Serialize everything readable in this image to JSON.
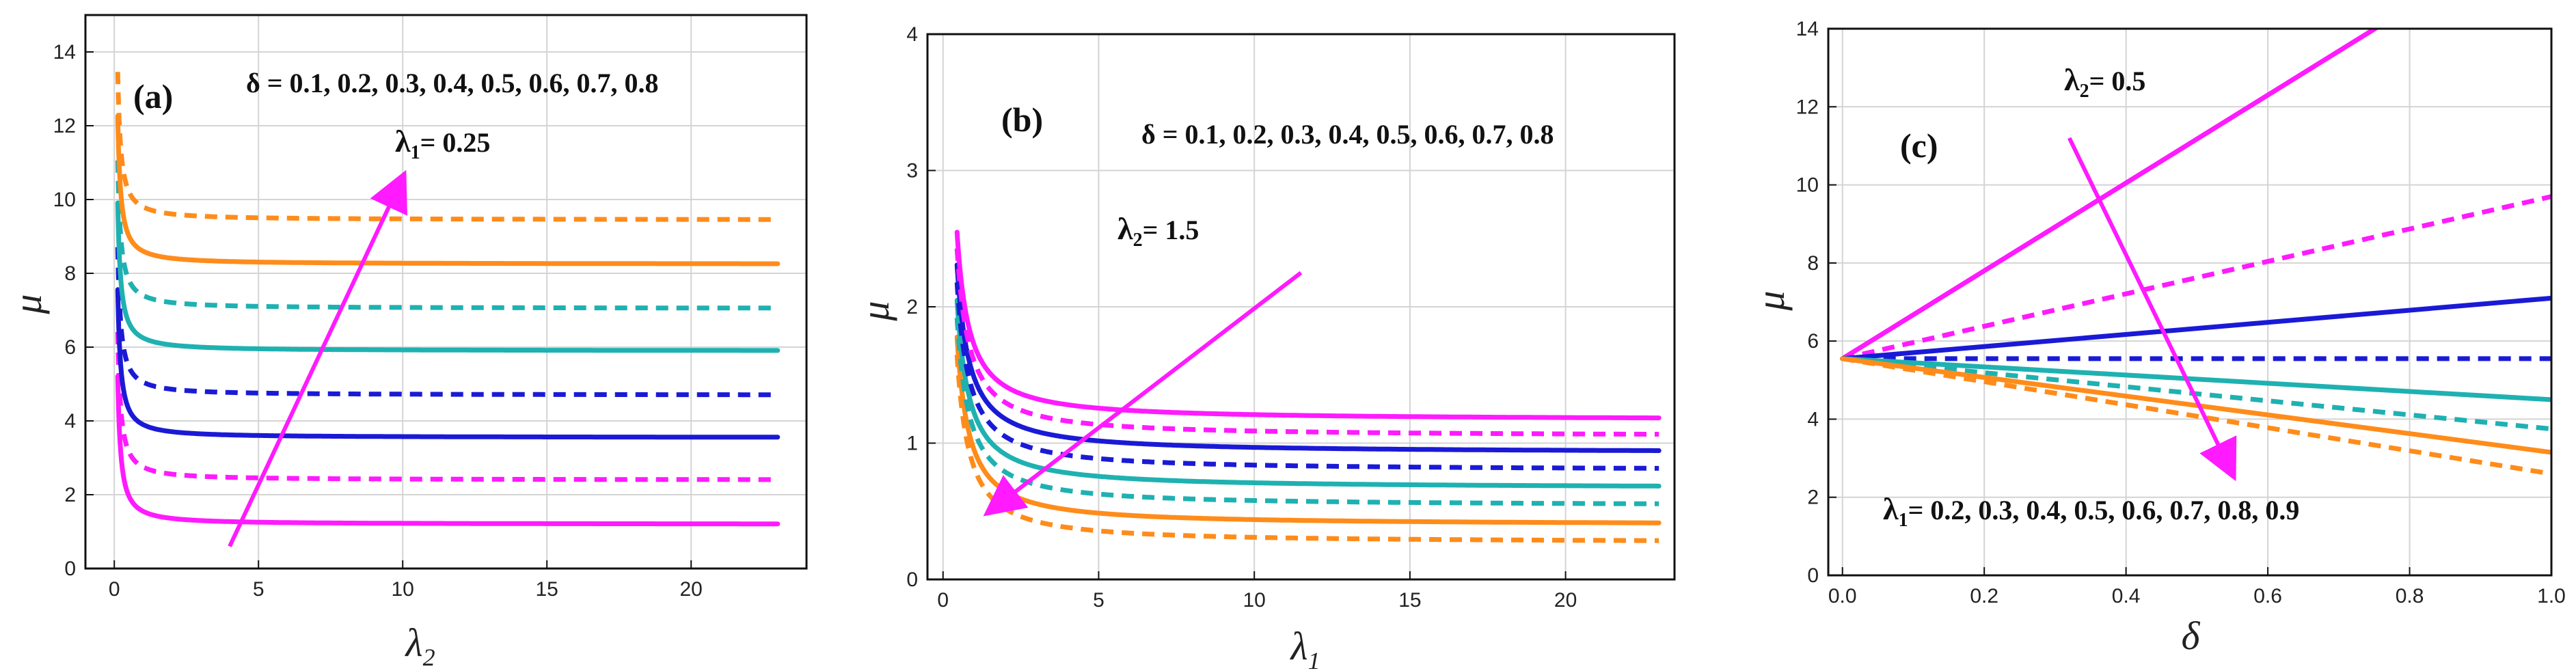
{
  "colors": {
    "orange": "#ff8c1a",
    "teal": "#1fb1b1",
    "blue": "#1a1ad6",
    "magenta": "#ff1aff",
    "grid": "#d4d4d4",
    "frame": "#111111"
  },
  "chart_data": [
    {
      "type": "line",
      "panel": "(a)",
      "xlabel_symbol": "λ",
      "xlabel_sub": "2",
      "ylabel": "μ",
      "xlim": [
        -1,
        24
      ],
      "ylim": [
        0,
        15
      ],
      "xticks": [
        0,
        5,
        10,
        15,
        20
      ],
      "yticks": [
        0,
        2,
        4,
        6,
        8,
        10,
        12,
        14
      ],
      "ann_delta": "δ = 0.1, 0.2, 0.3, 0.4, 0.5, 0.6, 0.7, 0.8",
      "ann_param_symbol": "λ",
      "ann_param_sub": "1",
      "ann_param_value": "= 0.25",
      "arrow": {
        "from": [
          4,
          0.6
        ],
        "to": [
          10,
          10.6
        ]
      },
      "curve": {
        "kind": "hyperbolic",
        "xmin": 0.12,
        "xmax": 23,
        "k": 0.35
      },
      "series": [
        {
          "name": "δ = 0.1",
          "color": "magenta",
          "dash": false,
          "limit": 1.2
        },
        {
          "name": "δ = 0.2",
          "color": "magenta",
          "dash": true,
          "limit": 2.4
        },
        {
          "name": "δ = 0.3",
          "color": "blue",
          "dash": false,
          "limit": 3.55
        },
        {
          "name": "δ = 0.4",
          "color": "blue",
          "dash": true,
          "limit": 4.7
        },
        {
          "name": "δ = 0.5",
          "color": "teal",
          "dash": false,
          "limit": 5.9
        },
        {
          "name": "δ = 0.6",
          "color": "teal",
          "dash": true,
          "limit": 7.05
        },
        {
          "name": "δ = 0.7",
          "color": "orange",
          "dash": false,
          "limit": 8.25
        },
        {
          "name": "δ = 0.8",
          "color": "orange",
          "dash": true,
          "limit": 9.45
        }
      ]
    },
    {
      "type": "line",
      "panel": "(b)",
      "xlabel_symbol": "λ",
      "xlabel_sub": "1",
      "ylabel": "μ",
      "xlim": [
        -0.5,
        23.5
      ],
      "ylim": [
        0,
        4
      ],
      "xticks": [
        0,
        5,
        10,
        15,
        20
      ],
      "yticks": [
        0,
        1,
        2,
        3,
        4
      ],
      "ann_delta": "δ = 0.1, 0.2, 0.3, 0.4, 0.5, 0.6, 0.7, 0.8",
      "ann_param_symbol": "λ",
      "ann_param_sub": "2",
      "ann_param_value": "= 1.5",
      "arrow": {
        "from": [
          11.5,
          2.25
        ],
        "to": [
          1.5,
          0.5
        ]
      },
      "curve": {
        "kind": "hyperbolic",
        "xmin": 0.45,
        "xmax": 23,
        "k": 0.55
      },
      "series": [
        {
          "name": "δ = 0.1",
          "color": "orange",
          "dash": true,
          "limit": 0.27
        },
        {
          "name": "δ = 0.2",
          "color": "orange",
          "dash": false,
          "limit": 0.4
        },
        {
          "name": "δ = 0.3",
          "color": "teal",
          "dash": true,
          "limit": 0.54
        },
        {
          "name": "δ = 0.4",
          "color": "teal",
          "dash": false,
          "limit": 0.67
        },
        {
          "name": "δ = 0.5",
          "color": "blue",
          "dash": true,
          "limit": 0.8
        },
        {
          "name": "δ = 0.6",
          "color": "blue",
          "dash": false,
          "limit": 0.93
        },
        {
          "name": "δ = 0.7",
          "color": "magenta",
          "dash": true,
          "limit": 1.05
        },
        {
          "name": "δ = 0.8",
          "color": "magenta",
          "dash": false,
          "limit": 1.17
        }
      ]
    },
    {
      "type": "line",
      "panel": "(c)",
      "xlabel_symbol": "δ",
      "xlabel_sub": "",
      "ylabel": "μ",
      "xlim": [
        -0.02,
        1.0
      ],
      "ylim": [
        0,
        14
      ],
      "xticks": [
        0.0,
        0.2,
        0.4,
        0.6,
        0.8,
        1.0
      ],
      "xtick_labels": [
        "0.0",
        "0.2",
        "0.4",
        "0.6",
        "0.8",
        "1.0"
      ],
      "yticks": [
        0,
        2,
        4,
        6,
        8,
        10,
        12,
        14
      ],
      "ann_lambda1": "= 0.2, 0.3, 0.4, 0.5, 0.6, 0.7, 0.8, 0.9",
      "ann_lambda1_symbol": "λ",
      "ann_lambda1_sub": "1",
      "ann_param_symbol": "λ",
      "ann_param_sub": "2",
      "ann_param_value": "= 0.5",
      "arrow": {
        "from": [
          0.32,
          11.2
        ],
        "to": [
          0.55,
          2.6
        ]
      },
      "curve": {
        "kind": "linear",
        "xmin": 0.0,
        "xmax": 1.0,
        "y0": 5.55
      },
      "series": [
        {
          "name": "λ1 = 0.2",
          "color": "magenta",
          "dash": false,
          "y_at_1": 16.8
        },
        {
          "name": "λ1 = 0.3",
          "color": "magenta",
          "dash": true,
          "y_at_1": 9.7
        },
        {
          "name": "λ1 = 0.4",
          "color": "blue",
          "dash": false,
          "y_at_1": 7.1
        },
        {
          "name": "λ1 = 0.5",
          "color": "blue",
          "dash": true,
          "y_at_1": 5.55
        },
        {
          "name": "λ1 = 0.6",
          "color": "teal",
          "dash": false,
          "y_at_1": 4.5
        },
        {
          "name": "λ1 = 0.7",
          "color": "teal",
          "dash": true,
          "y_at_1": 3.75
        },
        {
          "name": "λ1 = 0.8",
          "color": "orange",
          "dash": false,
          "y_at_1": 3.15
        },
        {
          "name": "λ1 = 0.9",
          "color": "orange",
          "dash": true,
          "y_at_1": 2.6
        }
      ]
    }
  ]
}
